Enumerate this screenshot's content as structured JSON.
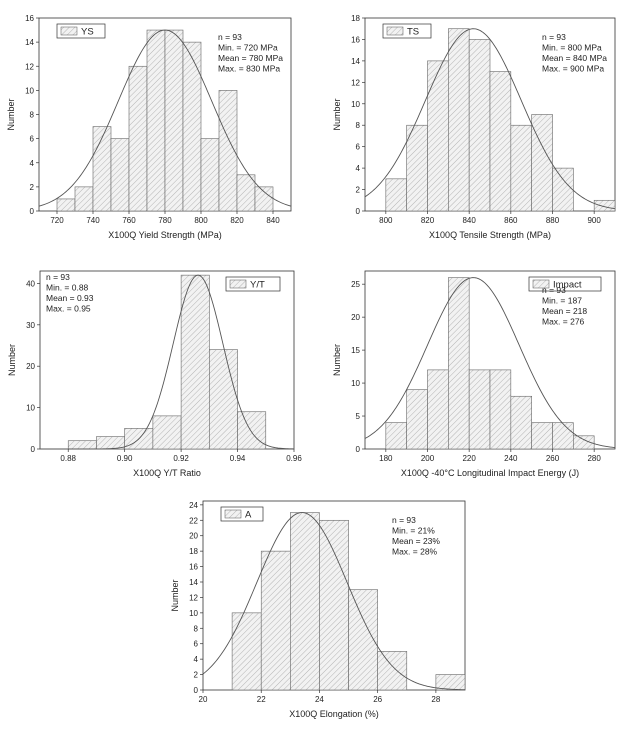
{
  "chart_data": [
    {
      "type": "bar",
      "title": "",
      "xlabel": "X100Q Yield Strength  (MPa)",
      "ylabel": "Number",
      "legend": "YS",
      "legend_position": "top-left",
      "xlim": [
        710,
        850
      ],
      "ylim": [
        0,
        16
      ],
      "xticks": [
        720,
        740,
        760,
        780,
        800,
        820,
        840
      ],
      "yticks": [
        0,
        2,
        4,
        6,
        8,
        10,
        12,
        14,
        16
      ],
      "bin_width": 10,
      "bins_start": [
        720,
        730,
        740,
        750,
        760,
        770,
        780,
        790,
        800,
        810,
        820,
        830
      ],
      "values": [
        1,
        2,
        7,
        6,
        12,
        15,
        15,
        14,
        6,
        10,
        3,
        2
      ],
      "fit": {
        "mean": 780,
        "peak": 15,
        "sigma": 26
      },
      "stats": [
        "n = 93",
        "Min.  = 720 MPa",
        "Mean = 780 MPa",
        "Max.  = 830 MPa"
      ],
      "stats_position": "top-right"
    },
    {
      "type": "bar",
      "title": "",
      "xlabel": "X100Q Tensile Strength  (MPa)",
      "ylabel": "Number",
      "legend": "TS",
      "legend_position": "top-left",
      "xlim": [
        790,
        910
      ],
      "ylim": [
        0,
        18
      ],
      "xticks": [
        800,
        820,
        840,
        860,
        880,
        900
      ],
      "yticks": [
        0,
        2,
        4,
        6,
        8,
        10,
        12,
        14,
        16,
        18
      ],
      "bin_width": 10,
      "bins_start": [
        800,
        810,
        820,
        830,
        840,
        850,
        860,
        870,
        880,
        890,
        900
      ],
      "values": [
        3,
        8,
        14,
        17,
        16,
        13,
        8,
        9,
        4,
        0,
        1
      ],
      "fit": {
        "mean": 842,
        "peak": 17,
        "sigma": 23
      },
      "stats": [
        "n = 93",
        "Min.   = 800 MPa",
        "Mean = 840 MPa",
        "Max.  = 900 MPa"
      ],
      "stats_position": "top-right"
    },
    {
      "type": "bar",
      "title": "",
      "xlabel": "X100Q Y/T Ratio",
      "ylabel": "Number",
      "legend": "Y/T",
      "legend_position": "top-right",
      "xlim": [
        0.87,
        0.96
      ],
      "ylim": [
        0,
        43
      ],
      "xticks": [
        "0.88",
        "0.90",
        "0.92",
        "0.94",
        "0.96"
      ],
      "yticks": [
        0,
        10,
        20,
        30,
        40
      ],
      "bin_width": 0.01,
      "bins_start": [
        0.88,
        0.89,
        0.9,
        0.91,
        0.92,
        0.93,
        0.94
      ],
      "values": [
        2,
        3,
        5,
        8,
        42,
        24,
        9
      ],
      "fit": {
        "mean": 0.926,
        "peak": 42,
        "sigma": 0.0088
      },
      "stats": [
        "n = 93",
        "Min.  = 0.88",
        "Mean = 0.93",
        "Max.  = 0.95"
      ],
      "stats_position": "top-left"
    },
    {
      "type": "bar",
      "title": "",
      "xlabel": "X100Q -40°C Longitudinal Impact Energy (J)",
      "ylabel": "Number",
      "legend": "Impact",
      "legend_position": "top-right",
      "xlim": [
        170,
        290
      ],
      "ylim": [
        0,
        27
      ],
      "xticks": [
        180,
        200,
        220,
        240,
        260,
        280
      ],
      "yticks": [
        0,
        5,
        10,
        15,
        20,
        25
      ],
      "bin_width": 10,
      "bins_start": [
        180,
        190,
        200,
        210,
        220,
        230,
        240,
        250,
        260,
        270
      ],
      "values": [
        4,
        9,
        12,
        26,
        12,
        12,
        8,
        4,
        4,
        2
      ],
      "fit": {
        "mean": 222,
        "peak": 26,
        "sigma": 22
      },
      "stats": [
        "n = 93",
        "Min.  = 187",
        "Mean = 218",
        "Max.  = 276"
      ],
      "stats_position": "top-right"
    },
    {
      "type": "bar",
      "title": "",
      "xlabel": "X100Q Elongation  (%)",
      "ylabel": "Number",
      "legend": "A",
      "legend_position": "top-left",
      "xlim": [
        20,
        29
      ],
      "ylim": [
        0,
        24.5
      ],
      "xticks": [
        20,
        22,
        24,
        26,
        28
      ],
      "yticks": [
        0,
        2,
        4,
        6,
        8,
        10,
        12,
        14,
        16,
        18,
        20,
        22,
        24
      ],
      "bin_width": 1,
      "bins_start": [
        21,
        22,
        23,
        24,
        25,
        26,
        27,
        28
      ],
      "values": [
        10,
        18,
        23,
        22,
        13,
        5,
        0,
        2
      ],
      "fit": {
        "mean": 23.4,
        "peak": 23,
        "sigma": 1.55
      },
      "stats": [
        "n = 93",
        "Min.  = 21%",
        "Mean = 23%",
        "Max.  = 28%"
      ],
      "stats_position": "top-right"
    }
  ]
}
